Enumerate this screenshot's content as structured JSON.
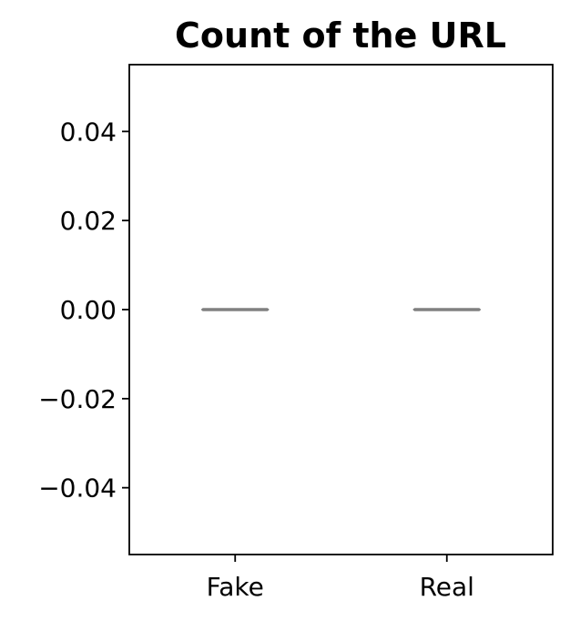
{
  "chart_data": {
    "type": "box",
    "title": "Count of the URL",
    "xlabel": "",
    "ylabel": "",
    "categories": [
      "Fake",
      "Real"
    ],
    "series": [
      {
        "values": [
          {
            "category": "Fake",
            "min": 0,
            "q1": 0,
            "median": 0,
            "q3": 0,
            "max": 0
          },
          {
            "category": "Real",
            "min": 0,
            "q1": 0,
            "median": 0,
            "q3": 0,
            "max": 0
          }
        ]
      }
    ],
    "ylim": [
      -0.055,
      0.055
    ],
    "yticks": [
      -0.04,
      -0.02,
      0.0,
      0.02,
      0.04
    ],
    "ytick_labels": [
      "−0.04",
      "−0.02",
      "0.00",
      "0.02",
      "0.04"
    ],
    "grid": false,
    "legend": "none",
    "colors": {
      "box_line": "#808080",
      "axis": "#000000",
      "background": "#ffffff"
    }
  }
}
